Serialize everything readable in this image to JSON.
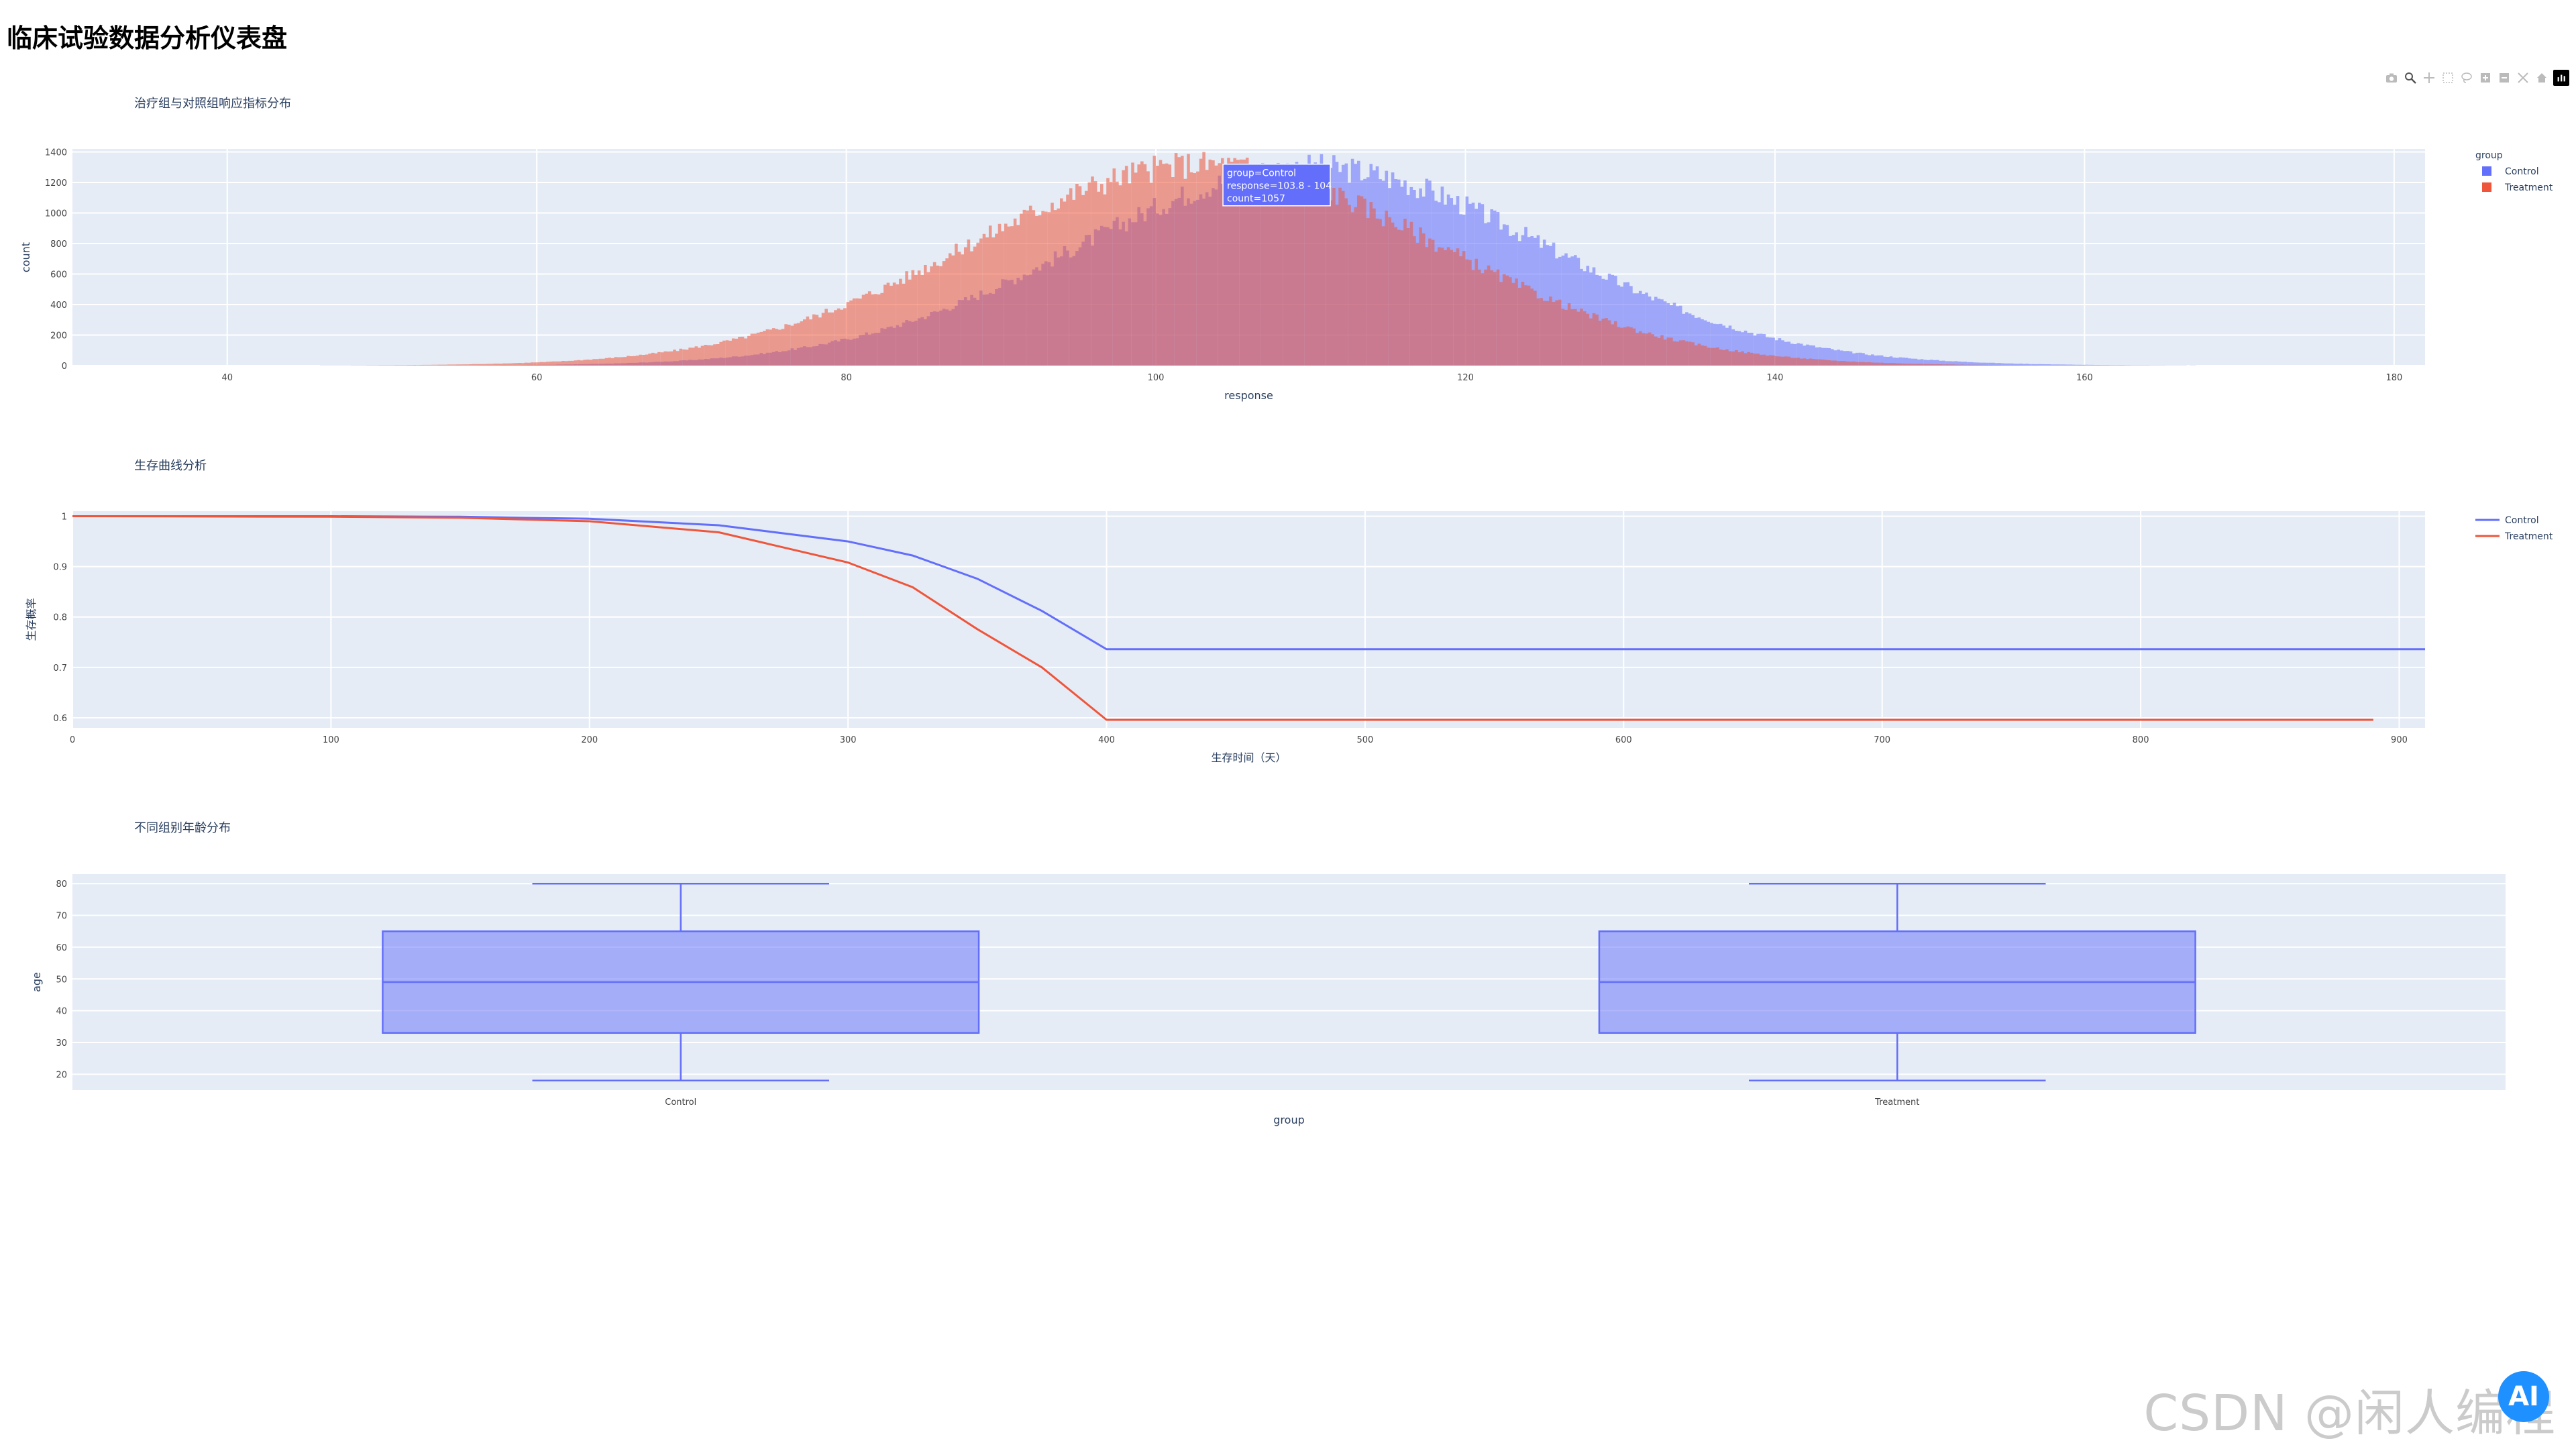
{
  "page": {
    "title": "临床试验数据分析仪表盘"
  },
  "modebar": {
    "icons": [
      "camera-icon",
      "zoom-icon",
      "pan-icon",
      "box-select-icon",
      "lasso-icon",
      "zoom-in-icon",
      "zoom-out-icon",
      "autoscale-icon",
      "home-icon",
      "plotly-logo-icon"
    ]
  },
  "watermark": {
    "text": "CSDN @闲人编程",
    "fab_text": "AI"
  },
  "colors": {
    "control": "#636efa",
    "treatment": "#ef553b",
    "plot_bg": "#e5ecf6",
    "grid": "#ffffff"
  },
  "chart_data": [
    {
      "type": "bar",
      "subtype": "histogram-overlay",
      "title": "治疗组与对照组响应指标分布",
      "xlabel": "response",
      "ylabel": "count",
      "xlim": [
        30,
        182
      ],
      "ylim": [
        0,
        1420
      ],
      "xticks": [
        40,
        60,
        80,
        100,
        120,
        140,
        160,
        180
      ],
      "yticks": [
        0,
        200,
        400,
        600,
        800,
        1000,
        1200,
        1400
      ],
      "legend": {
        "title": "group",
        "placement": "top-right",
        "items": [
          "Control",
          "Treatment"
        ]
      },
      "series": [
        {
          "name": "Control",
          "color": "#636efa",
          "mean": 110,
          "peak_count": 1300
        },
        {
          "name": "Treatment",
          "color": "#ef553b",
          "mean": 103,
          "peak_count": 1320
        }
      ],
      "bin_width": 0.2,
      "tooltip": {
        "lines": [
          "group=Control",
          "response=103.8 - 104",
          "count=1057"
        ],
        "x": 103.9,
        "y": 1057
      },
      "grid": true
    },
    {
      "type": "line",
      "title": "生存曲线分析",
      "xlabel": "生存时间（天）",
      "ylabel": "生存概率",
      "xlim": [
        0,
        910
      ],
      "ylim": [
        0.58,
        1.01
      ],
      "xticks": [
        0,
        100,
        200,
        300,
        400,
        500,
        600,
        700,
        800,
        900
      ],
      "yticks": [
        0.6,
        0.7,
        0.8,
        0.9,
        1
      ],
      "ytick_labels": [
        "0.6",
        "0.7",
        "0.8",
        "0.9",
        "1"
      ],
      "legend": {
        "placement": "top-right",
        "items": [
          "Control",
          "Treatment"
        ]
      },
      "series": [
        {
          "name": "Control",
          "color": "#636efa",
          "x": [
            0,
            100,
            150,
            200,
            250,
            300,
            325,
            350,
            375,
            400,
            910
          ],
          "y": [
            1.0,
            1.0,
            0.999,
            0.995,
            0.982,
            0.95,
            0.922,
            0.876,
            0.812,
            0.736,
            0.736
          ]
        },
        {
          "name": "Treatment",
          "color": "#ef553b",
          "x": [
            0,
            100,
            150,
            200,
            250,
            300,
            325,
            350,
            375,
            400,
            890
          ],
          "y": [
            1.0,
            0.999,
            0.997,
            0.99,
            0.968,
            0.908,
            0.859,
            0.776,
            0.7,
            0.596,
            0.596
          ]
        }
      ],
      "grid": true
    },
    {
      "type": "box",
      "title": "不同组别年龄分布",
      "xlabel": "group",
      "ylabel": "age",
      "categories": [
        "Control",
        "Treatment"
      ],
      "ylim": [
        15,
        83
      ],
      "yticks": [
        20,
        30,
        40,
        50,
        60,
        70,
        80
      ],
      "boxes": [
        {
          "name": "Control",
          "min": 18,
          "q1": 33,
          "median": 49,
          "q3": 65,
          "max": 80
        },
        {
          "name": "Treatment",
          "min": 18,
          "q1": 33,
          "median": 49,
          "q3": 65,
          "max": 80
        }
      ],
      "color": "#636efa",
      "grid": true
    }
  ]
}
